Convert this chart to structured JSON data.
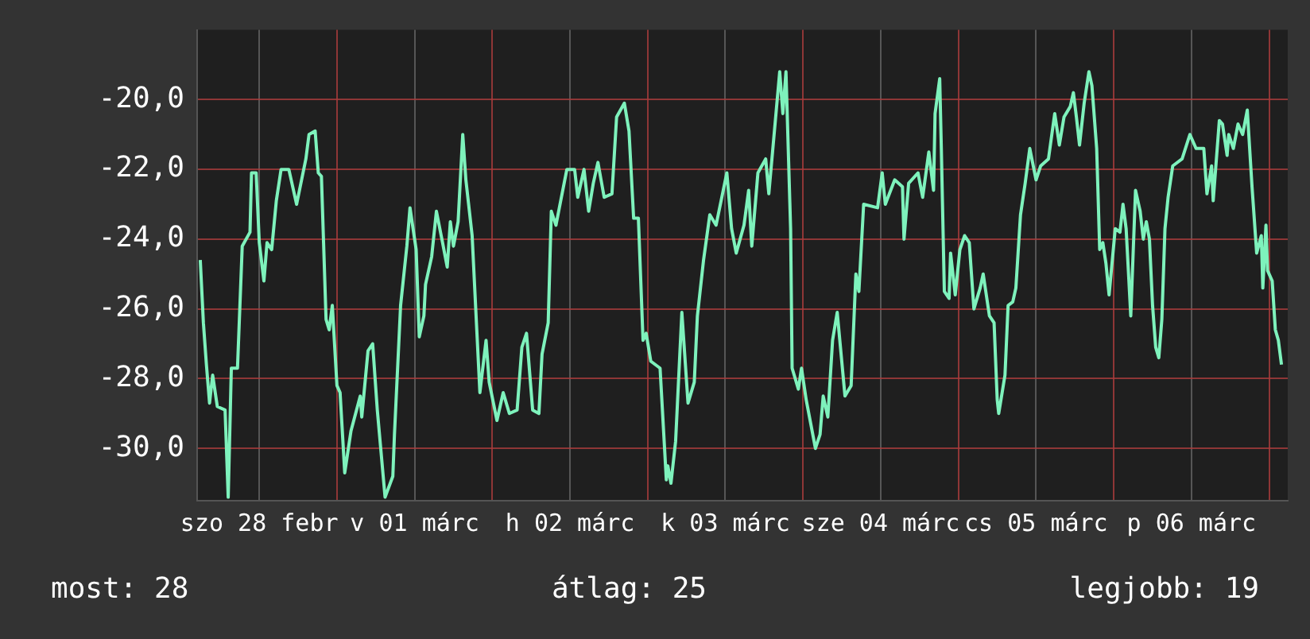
{
  "chart_data": {
    "type": "line",
    "xlim": [
      "--02-28T02:24",
      "--03-07T02:53"
    ],
    "ylim": [
      -31.5,
      -18
    ],
    "xticks": [
      {
        "value": "--02-28T12:00",
        "label": "szo 28 febr"
      },
      {
        "value": "--03-01T00:00",
        "label": null
      },
      {
        "value": "--03-01T12:00",
        "label": "v 01 márc"
      },
      {
        "value": "--03-02T00:00",
        "label": null
      },
      {
        "value": "--03-02T12:00",
        "label": "h 02 márc"
      },
      {
        "value": "--03-03T00:00",
        "label": null
      },
      {
        "value": "--03-03T12:00",
        "label": "k 03 márc"
      },
      {
        "value": "--03-04T00:00",
        "label": null
      },
      {
        "value": "--03-04T12:00",
        "label": "sze 04 márc"
      },
      {
        "value": "--03-05T00:00",
        "label": null
      },
      {
        "value": "--03-05T12:00",
        "label": "cs 05 márc"
      },
      {
        "value": "--03-06T00:00",
        "label": null
      },
      {
        "value": "--03-06T12:00",
        "label": "p 06 márc"
      },
      {
        "value": "--03-07T00:00",
        "label": null
      }
    ],
    "yticks": [
      {
        "value": -30,
        "label": "-30,0"
      },
      {
        "value": -28,
        "label": "-28,0"
      },
      {
        "value": -26,
        "label": "-26,0"
      },
      {
        "value": -24,
        "label": "-24,0"
      },
      {
        "value": -22,
        "label": "-22,0"
      },
      {
        "value": -20,
        "label": "-20,0"
      }
    ],
    "grid": true,
    "legend": false,
    "marker": "none",
    "line_style": "solid",
    "annotations": [
      "most: 28",
      "átlag: 25",
      "legjobb: 19"
    ],
    "series": [
      {
        "color": "#7ef2bc",
        "x": [
          "--02-28T02:53",
          "--02-28T03:22",
          "--02-28T03:50",
          "--02-28T04:19",
          "--02-28T04:48",
          "--02-28T05:31",
          "--02-28T06:43",
          "--02-28T07:12",
          "--02-28T07:41",
          "--02-28T08:38",
          "--02-28T09:22",
          "--02-28T10:34",
          "--02-28T10:48",
          "--02-28T11:31",
          "--02-28T12:00",
          "--02-28T12:43",
          "--02-28T13:12",
          "--02-28T13:55",
          "--02-28T14:38",
          "--02-28T15:22",
          "--02-28T16:34",
          "--02-28T17:46",
          "--02-28T19:12",
          "--02-28T19:41",
          "--02-28T20:38",
          "--02-28T21:07",
          "--02-28T21:36",
          "--02-28T22:19",
          "--02-28T22:48",
          "--02-28T23:17",
          "--03-01T00:00",
          "--03-01T00:29",
          "--03-01T01:12",
          "--03-01T02:10",
          "--03-01T03:36",
          "--03-01T03:50",
          "--03-01T04:48",
          "--03-01T05:31",
          "--03-01T06:14",
          "--03-01T07:26",
          "--03-01T08:38",
          "--03-01T08:53",
          "--03-01T09:50",
          "--03-01T10:48",
          "--03-01T11:17",
          "--03-01T12:14",
          "--03-01T12:43",
          "--03-01T13:26",
          "--03-01T13:41",
          "--03-01T14:38",
          "--03-01T15:22",
          "--03-01T16:19",
          "--03-01T17:02",
          "--03-01T17:31",
          "--03-01T18:00",
          "--03-01T18:43",
          "--03-01T19:26",
          "--03-01T19:55",
          "--03-01T20:53",
          "--03-01T21:36",
          "--03-01T22:05",
          "--03-01T23:02",
          "--03-01T23:31",
          "--03-02T00:43",
          "--03-02T01:41",
          "--03-02T02:38",
          "--03-02T03:50",
          "--03-02T04:34",
          "--03-02T05:17",
          "--03-02T06:14",
          "--03-02T07:12",
          "--03-02T07:41",
          "--03-02T08:38",
          "--03-02T09:07",
          "--03-02T09:50",
          "--03-02T10:34",
          "--03-02T11:31",
          "--03-02T12:43",
          "--03-02T13:12",
          "--03-02T14:10",
          "--03-02T14:53",
          "--03-02T15:36",
          "--03-02T16:19",
          "--03-02T17:17",
          "--03-02T18:29",
          "--03-02T19:12",
          "--03-02T20:24",
          "--03-02T21:07",
          "--03-02T21:50",
          "--03-02T22:34",
          "--03-02T23:17",
          "--03-02T23:46",
          "--03-03T00:29",
          "--03-03T01:55",
          "--03-03T02:53",
          "--03-03T03:07",
          "--03-03T03:36",
          "--03-03T04:19",
          "--03-03T05:17",
          "--03-03T06:14",
          "--03-03T07:12",
          "--03-03T07:41",
          "--03-03T08:38",
          "--03-03T09:36",
          "--03-03T10:34",
          "--03-03T12:14",
          "--03-03T12:58",
          "--03-03T13:41",
          "--03-03T14:53",
          "--03-03T15:36",
          "--03-03T16:05",
          "--03-03T17:02",
          "--03-03T18:14",
          "--03-03T18:43",
          "--03-03T20:24",
          "--03-03T20:53",
          "--03-03T21:22",
          "--03-03T22:05",
          "--03-03T22:19",
          "--03-03T23:17",
          "--03-03T23:46",
          "--03-04T00:29",
          "--03-04T01:12",
          "--03-04T01:55",
          "--03-04T02:38",
          "--03-04T03:07",
          "--03-04T03:50",
          "--03-04T04:34",
          "--03-04T05:17",
          "--03-04T06:29",
          "--03-04T07:26",
          "--03-04T08:10",
          "--03-04T08:38",
          "--03-04T09:22",
          "--03-04T11:31",
          "--03-04T12:14",
          "--03-04T12:43",
          "--03-04T14:10",
          "--03-04T15:22",
          "--03-04T15:36",
          "--03-04T16:19",
          "--03-04T17:46",
          "--03-04T18:29",
          "--03-04T19:26",
          "--03-04T20:10",
          "--03-04T20:24",
          "--03-04T21:07",
          "--03-04T21:22",
          "--03-04T21:50",
          "--03-04T22:34",
          "--03-04T22:48",
          "--03-04T23:31",
          "--03-05T00:14",
          "--03-05T00:58",
          "--03-05T01:41",
          "--03-05T02:24",
          "--03-05T03:22",
          "--03-05T03:50",
          "--03-05T04:48",
          "--03-05T05:31",
          "--03-05T06:00",
          "--03-05T06:14",
          "--03-05T07:12",
          "--03-05T07:41",
          "--03-05T08:24",
          "--03-05T08:53",
          "--03-05T09:36",
          "--03-05T10:19",
          "--03-05T11:02",
          "--03-05T12:00",
          "--03-05T12:43",
          "--03-05T13:55",
          "--03-05T14:53",
          "--03-05T15:36",
          "--03-05T16:19",
          "--03-05T17:17",
          "--03-05T17:46",
          "--03-05T18:14",
          "--03-05T18:43",
          "--03-05T19:26",
          "--03-05T20:10",
          "--03-05T20:38",
          "--03-05T21:22",
          "--03-05T21:50",
          "--03-05T22:19",
          "--03-05T22:48",
          "--03-05T23:17",
          "--03-06T00:14",
          "--03-06T00:58",
          "--03-06T01:26",
          "--03-06T01:55",
          "--03-06T02:38",
          "--03-06T03:22",
          "--03-06T04:05",
          "--03-06T04:34",
          "--03-06T05:02",
          "--03-06T05:31",
          "--03-06T06:00",
          "--03-06T06:29",
          "--03-06T06:58",
          "--03-06T07:26",
          "--03-06T07:55",
          "--03-06T08:24",
          "--03-06T09:07",
          "--03-06T10:34",
          "--03-06T11:46",
          "--03-06T12:43",
          "--03-06T13:55",
          "--03-06T14:24",
          "--03-06T15:07",
          "--03-06T15:22",
          "--03-06T16:19",
          "--03-06T16:48",
          "--03-06T17:31",
          "--03-06T17:46",
          "--03-06T18:29",
          "--03-06T19:12",
          "--03-06T19:55",
          "--03-06T20:38",
          "--03-06T21:22",
          "--03-06T22:05",
          "--03-06T22:48",
          "--03-06T23:02",
          "--03-06T23:31",
          "--03-06T23:46",
          "--03-07T00:29",
          "--03-07T00:58",
          "--03-07T01:26",
          "--03-07T01:55"
        ],
        "values": [
          -24.6,
          -26.4,
          -27.6,
          -28.7,
          -27.9,
          -28.8,
          -28.9,
          -31.4,
          -27.7,
          -27.7,
          -24.2,
          -23.8,
          -22.1,
          -22.1,
          -24.1,
          -25.2,
          -24.1,
          -24.3,
          -22.9,
          -22.0,
          -22.0,
          -23.0,
          -21.7,
          -21.0,
          -20.9,
          -22.1,
          -22.2,
          -26.3,
          -26.6,
          -25.9,
          -28.2,
          -28.4,
          -30.7,
          -29.5,
          -28.5,
          -29.1,
          -27.2,
          -27.0,
          -28.9,
          -31.4,
          -30.8,
          -29.6,
          -25.9,
          -24.2,
          -23.1,
          -24.3,
          -26.8,
          -26.2,
          -25.3,
          -24.5,
          -23.2,
          -24.1,
          -24.8,
          -23.5,
          -24.2,
          -23.5,
          -21.0,
          -22.3,
          -23.9,
          -26.6,
          -28.4,
          -26.9,
          -28.1,
          -29.2,
          -28.4,
          -29.0,
          -28.9,
          -27.1,
          -26.7,
          -28.9,
          -29.0,
          -27.3,
          -26.4,
          -23.2,
          -23.6,
          -22.9,
          -22.0,
          -22.0,
          -22.8,
          -22.0,
          -23.2,
          -22.4,
          -21.8,
          -22.8,
          -22.7,
          -20.5,
          -20.1,
          -20.9,
          -23.4,
          -23.4,
          -26.9,
          -26.7,
          -27.5,
          -27.7,
          -30.9,
          -30.5,
          -31.0,
          -29.8,
          -26.1,
          -28.7,
          -28.1,
          -26.2,
          -24.6,
          -23.3,
          -23.6,
          -22.1,
          -23.7,
          -24.4,
          -23.6,
          -22.6,
          -24.2,
          -22.1,
          -21.7,
          -22.7,
          -19.2,
          -20.4,
          -19.2,
          -23.7,
          -27.7,
          -28.3,
          -27.7,
          -28.6,
          -29.3,
          -30.0,
          -29.6,
          -28.5,
          -29.1,
          -26.9,
          -26.1,
          -28.5,
          -28.2,
          -25.0,
          -25.5,
          -23.0,
          -23.1,
          -22.1,
          -23.0,
          -22.3,
          -22.5,
          -24.0,
          -22.4,
          -22.1,
          -22.8,
          -21.5,
          -22.6,
          -20.4,
          -19.4,
          -21.4,
          -25.5,
          -25.7,
          -24.4,
          -25.6,
          -24.3,
          -23.9,
          -24.1,
          -26.0,
          -25.4,
          -25.0,
          -26.2,
          -26.4,
          -28.6,
          -29.0,
          -27.9,
          -25.9,
          -25.8,
          -25.4,
          -23.3,
          -22.4,
          -21.4,
          -22.3,
          -21.9,
          -21.7,
          -20.4,
          -21.3,
          -20.5,
          -20.2,
          -19.8,
          -20.5,
          -21.3,
          -20.1,
          -19.2,
          -19.6,
          -21.4,
          -24.3,
          -24.1,
          -24.7,
          -25.6,
          -23.7,
          -23.8,
          -23.0,
          -23.7,
          -26.2,
          -22.6,
          -23.2,
          -24.0,
          -23.5,
          -24.0,
          -25.9,
          -27.1,
          -27.4,
          -26.3,
          -23.7,
          -22.8,
          -21.9,
          -21.7,
          -21.0,
          -21.4,
          -21.4,
          -22.7,
          -21.9,
          -22.9,
          -20.6,
          -20.7,
          -21.6,
          -21.0,
          -21.4,
          -20.7,
          -21.0,
          -20.3,
          -22.5,
          -24.4,
          -23.9,
          -25.4,
          -23.6,
          -24.9,
          -25.2,
          -26.6,
          -26.9,
          -27.6
        ]
      }
    ]
  }
}
